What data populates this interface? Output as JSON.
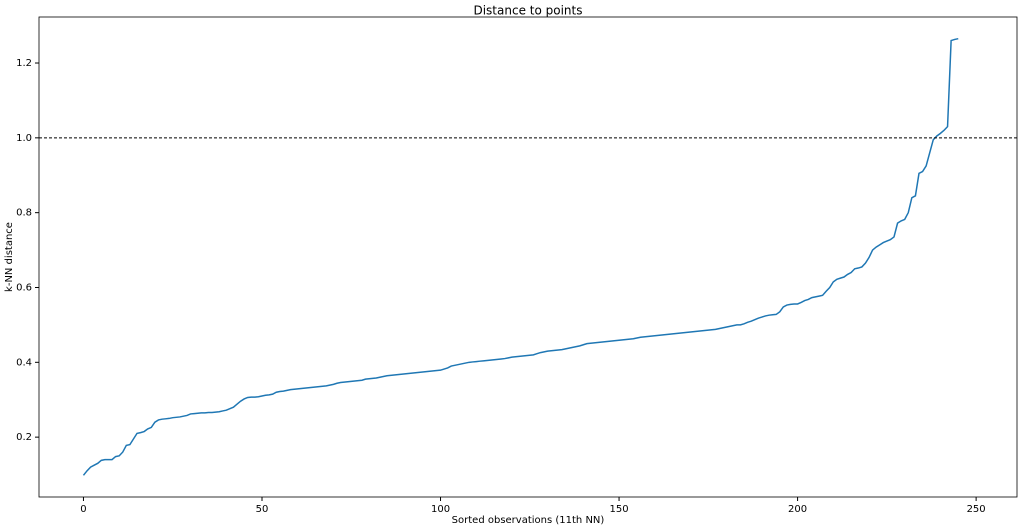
{
  "chart_data": {
    "type": "line",
    "title": "Distance to points",
    "x_label": "Sorted observations (11th NN)",
    "y_label": "k-NN distance",
    "color": "#1f77b4",
    "values": [
      0.098,
      0.11,
      0.12,
      0.125,
      0.13,
      0.138,
      0.14,
      0.14,
      0.14,
      0.148,
      0.15,
      0.16,
      0.178,
      0.18,
      0.195,
      0.21,
      0.212,
      0.215,
      0.222,
      0.226,
      0.24,
      0.246,
      0.248,
      0.249,
      0.25,
      0.252,
      0.253,
      0.254,
      0.256,
      0.258,
      0.262,
      0.263,
      0.264,
      0.265,
      0.265,
      0.266,
      0.266,
      0.267,
      0.268,
      0.27,
      0.272,
      0.276,
      0.28,
      0.288,
      0.296,
      0.302,
      0.306,
      0.307,
      0.307,
      0.308,
      0.31,
      0.312,
      0.313,
      0.315,
      0.32,
      0.322,
      0.323,
      0.325,
      0.327,
      0.328,
      0.329,
      0.33,
      0.331,
      0.332,
      0.333,
      0.334,
      0.335,
      0.336,
      0.337,
      0.339,
      0.341,
      0.344,
      0.346,
      0.347,
      0.348,
      0.349,
      0.35,
      0.351,
      0.352,
      0.355,
      0.356,
      0.357,
      0.358,
      0.36,
      0.362,
      0.364,
      0.365,
      0.366,
      0.367,
      0.368,
      0.369,
      0.37,
      0.371,
      0.372,
      0.373,
      0.374,
      0.375,
      0.376,
      0.377,
      0.378,
      0.379,
      0.382,
      0.385,
      0.39,
      0.392,
      0.394,
      0.396,
      0.398,
      0.4,
      0.401,
      0.402,
      0.403,
      0.404,
      0.405,
      0.406,
      0.407,
      0.408,
      0.409,
      0.41,
      0.412,
      0.414,
      0.415,
      0.416,
      0.417,
      0.418,
      0.419,
      0.42,
      0.423,
      0.426,
      0.428,
      0.43,
      0.431,
      0.432,
      0.433,
      0.434,
      0.436,
      0.438,
      0.44,
      0.442,
      0.444,
      0.447,
      0.45,
      0.451,
      0.452,
      0.453,
      0.454,
      0.455,
      0.456,
      0.457,
      0.458,
      0.459,
      0.46,
      0.461,
      0.462,
      0.463,
      0.465,
      0.467,
      0.468,
      0.469,
      0.47,
      0.471,
      0.472,
      0.473,
      0.474,
      0.475,
      0.476,
      0.477,
      0.478,
      0.479,
      0.48,
      0.481,
      0.482,
      0.483,
      0.484,
      0.485,
      0.486,
      0.487,
      0.488,
      0.49,
      0.492,
      0.494,
      0.496,
      0.498,
      0.5,
      0.5,
      0.503,
      0.507,
      0.51,
      0.514,
      0.518,
      0.521,
      0.524,
      0.526,
      0.527,
      0.528,
      0.535,
      0.548,
      0.553,
      0.555,
      0.556,
      0.556,
      0.56,
      0.565,
      0.568,
      0.573,
      0.575,
      0.577,
      0.579,
      0.59,
      0.6,
      0.615,
      0.622,
      0.625,
      0.628,
      0.635,
      0.64,
      0.65,
      0.652,
      0.655,
      0.665,
      0.68,
      0.7,
      0.708,
      0.714,
      0.72,
      0.724,
      0.728,
      0.735,
      0.772,
      0.778,
      0.782,
      0.8,
      0.84,
      0.845,
      0.905,
      0.91,
      0.925,
      0.96,
      0.995,
      1.005,
      1.012,
      1.02,
      1.03,
      1.26,
      1.263,
      1.265
    ],
    "hline": 1.0,
    "xlim": [
      -12.45,
      261.45
    ],
    "xticks": [
      0,
      50,
      100,
      150,
      200,
      250
    ],
    "ylim": [
      0.04,
      1.323
    ],
    "yticks": [
      0.2,
      0.4,
      0.6,
      0.8,
      {
        "value": 1,
        "label": "1.0"
      },
      1.2
    ],
    "grid": false
  }
}
